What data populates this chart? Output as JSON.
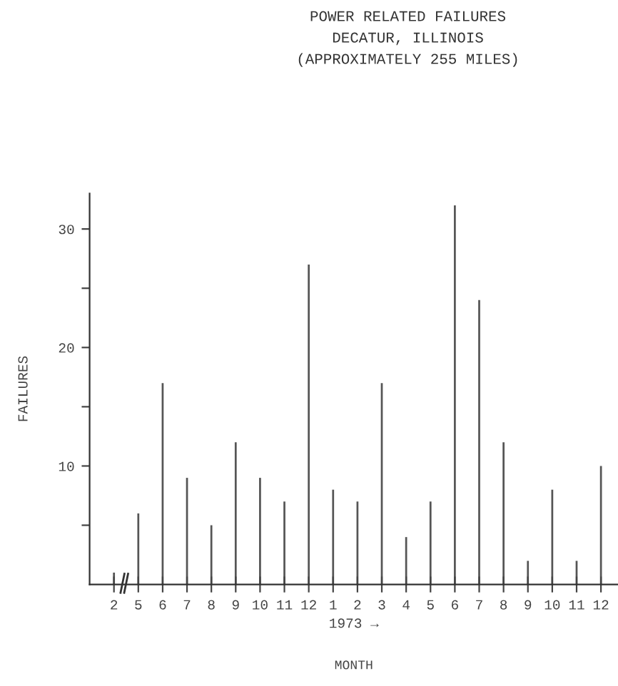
{
  "chart_data": {
    "type": "bar",
    "title": "POWER RELATED FAILURES\nDECATUR, ILLINOIS\n(APPROXIMATELY 255 MILES)",
    "xlabel": "MONTH",
    "ylabel": "FAILURES",
    "categories": [
      "2",
      "5",
      "6",
      "7",
      "8",
      "9",
      "10",
      "11",
      "12",
      "1",
      "2",
      "3",
      "4",
      "5",
      "6",
      "7",
      "8",
      "9",
      "10",
      "11",
      "12"
    ],
    "values": [
      1,
      6,
      17,
      9,
      5,
      12,
      9,
      7,
      27,
      8,
      7,
      17,
      4,
      7,
      32,
      24,
      12,
      2,
      8,
      2,
      10
    ],
    "color": "#555555",
    "ylim": [
      0,
      33
    ],
    "yticks": [
      {
        "value": 5,
        "label": null
      },
      10,
      {
        "value": 15,
        "label": null
      },
      20,
      {
        "value": 25,
        "label": null
      },
      30
    ],
    "annotations": [
      "1973 →"
    ],
    "grid": false,
    "legend": false
  }
}
